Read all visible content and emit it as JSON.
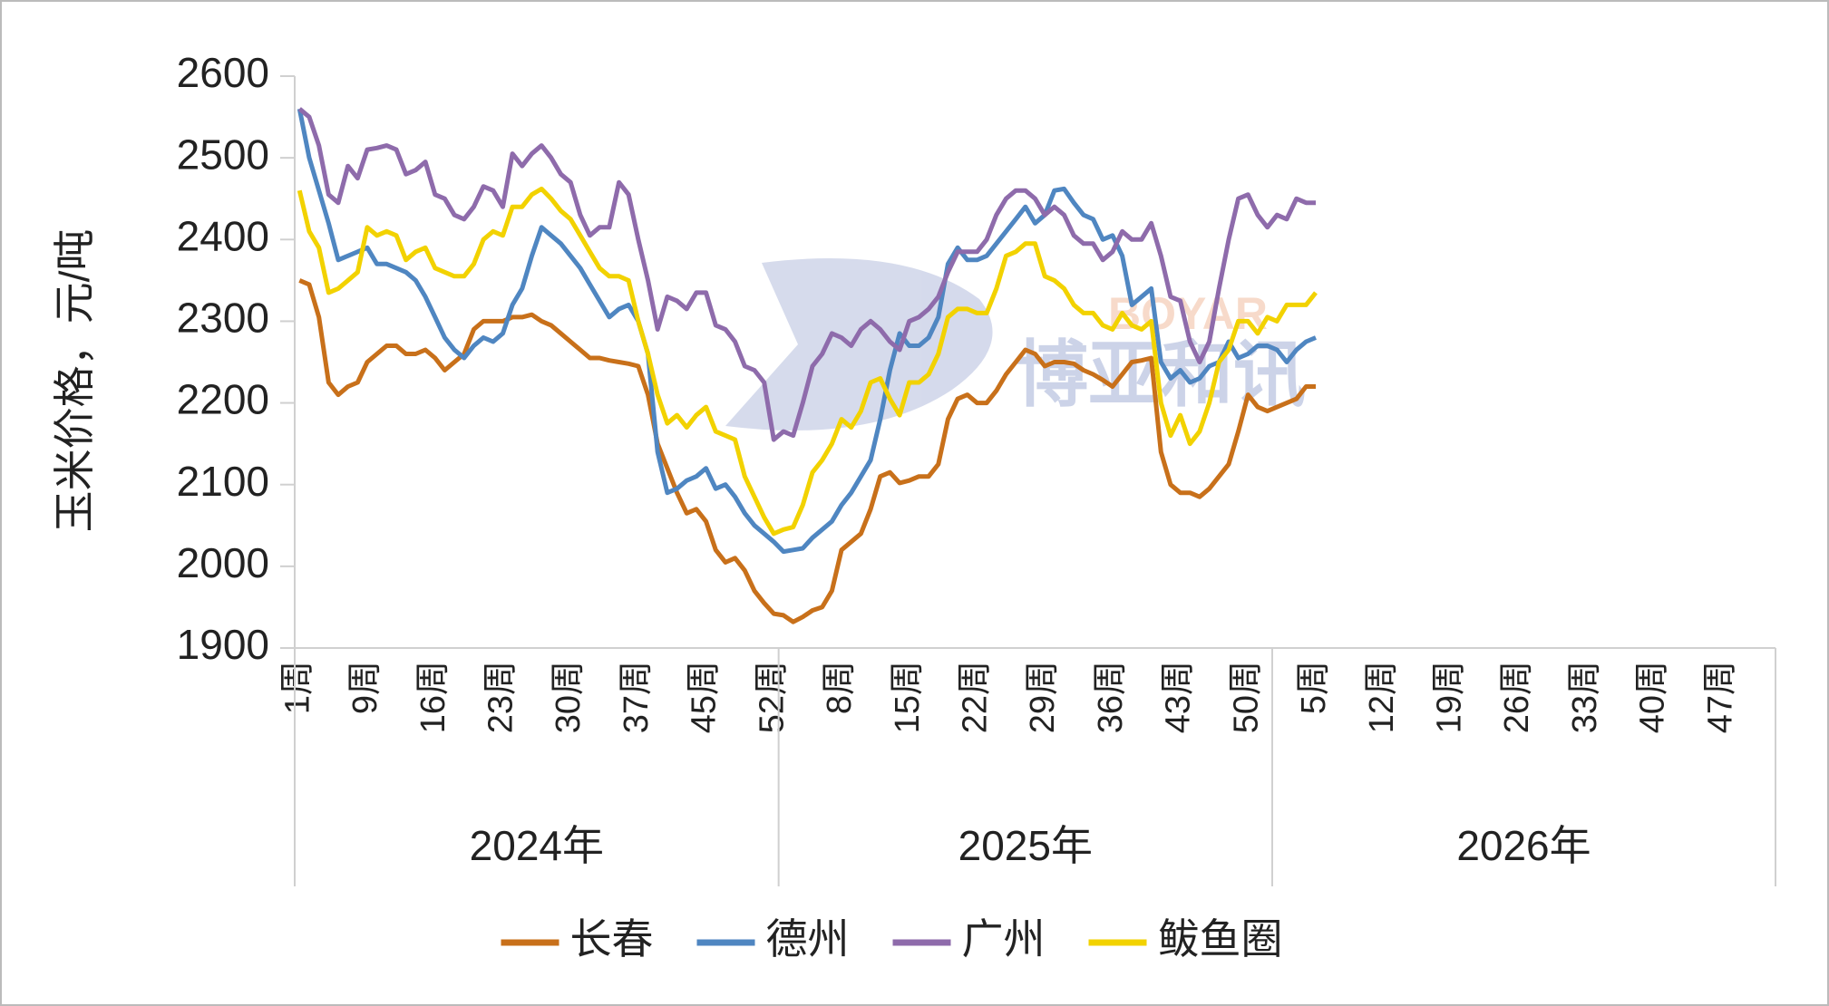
{
  "chart_data": {
    "type": "line",
    "ylabel": "玉米价格，元/吨",
    "watermark": "博亚和讯",
    "watermark_sub": "BOYAR",
    "ylim": [
      1900,
      2600
    ],
    "yticks": [
      1900,
      2000,
      2100,
      2200,
      2300,
      2400,
      2500,
      2600
    ],
    "grid": false,
    "legend": "bottom",
    "x_groups": [
      {
        "label": "2024年",
        "span": 50
      },
      {
        "label": "2025年",
        "span": 51
      },
      {
        "label": "2026年",
        "span": 52
      }
    ],
    "categories": [
      "1周",
      null,
      null,
      null,
      null,
      null,
      null,
      "9周",
      null,
      null,
      null,
      null,
      null,
      null,
      "16周",
      null,
      null,
      null,
      null,
      null,
      null,
      "23周",
      null,
      null,
      null,
      null,
      null,
      null,
      "30周",
      null,
      null,
      null,
      null,
      null,
      null,
      "37周",
      null,
      null,
      null,
      null,
      null,
      null,
      "45周",
      null,
      null,
      null,
      null,
      null,
      null,
      "52周",
      null,
      null,
      null,
      null,
      null,
      null,
      "8周",
      null,
      null,
      null,
      null,
      null,
      null,
      "15周",
      null,
      null,
      null,
      null,
      null,
      null,
      "22周",
      null,
      null,
      null,
      null,
      null,
      null,
      "29周",
      null,
      null,
      null,
      null,
      null,
      null,
      "36周",
      null,
      null,
      null,
      null,
      null,
      null,
      "43周",
      null,
      null,
      null,
      null,
      null,
      null,
      "50周",
      null,
      null,
      null,
      null,
      null,
      null,
      "5周",
      null,
      null,
      null,
      null,
      null,
      null,
      "12周",
      null,
      null,
      null,
      null,
      null,
      null,
      "19周",
      null,
      null,
      null,
      null,
      null,
      null,
      "26周",
      null,
      null,
      null,
      null,
      null,
      null,
      "33周",
      null,
      null,
      null,
      null,
      null,
      null,
      "40周",
      null,
      null,
      null,
      null,
      null,
      null,
      "47周",
      null,
      null,
      null,
      null,
      null
    ],
    "series": [
      {
        "name": "长春",
        "color": "#c8701a",
        "values": [
          2350,
          2345,
          2305,
          2225,
          2210,
          2220,
          2225,
          2250,
          2260,
          2270,
          2270,
          2260,
          2260,
          2265,
          2255,
          2240,
          2250,
          2260,
          2290,
          2300,
          2300,
          2300,
          2305,
          2305,
          2308,
          2300,
          2295,
          2285,
          2275,
          2265,
          2255,
          2255,
          2252,
          2250,
          2248,
          2245,
          2210,
          2150,
          2120,
          2090,
          2065,
          2070,
          2055,
          2020,
          2005,
          2010,
          1995,
          1970,
          1955,
          1942,
          1940,
          1932,
          1938,
          1946,
          1950,
          1970,
          2020,
          2030,
          2040,
          2070,
          2110,
          2115,
          2102,
          2105,
          2110,
          2110,
          2125,
          2180,
          2205,
          2210,
          2200,
          2200,
          2215,
          2235,
          2250,
          2265,
          2260,
          2245,
          2250,
          2250,
          2248,
          2240,
          2235,
          2228,
          2220,
          2235,
          2250,
          2252,
          2255,
          2140,
          2100,
          2090,
          2090,
          2085,
          2095,
          2110,
          2125,
          2165,
          2210,
          2195,
          2190,
          2195,
          2200,
          2205,
          2220,
          2220,
          null,
          null,
          null,
          null,
          null,
          null,
          null,
          null,
          null,
          null,
          null,
          null,
          null,
          null,
          null,
          null,
          null,
          null,
          null,
          null,
          null,
          null,
          null,
          null,
          null,
          null,
          null,
          null,
          null,
          null,
          null,
          null,
          null,
          null,
          null,
          null,
          null,
          null,
          null,
          null,
          null,
          null,
          null,
          null,
          null,
          null,
          null
        ]
      },
      {
        "name": "德州",
        "color": "#4f86c1",
        "values": [
          2560,
          2500,
          2460,
          2420,
          2375,
          2380,
          2385,
          2390,
          2370,
          2370,
          2365,
          2360,
          2350,
          2330,
          2305,
          2280,
          2265,
          2255,
          2270,
          2280,
          2275,
          2285,
          2320,
          2340,
          2380,
          2415,
          2405,
          2395,
          2380,
          2365,
          2345,
          2325,
          2305,
          2315,
          2320,
          2300,
          2260,
          2140,
          2090,
          2095,
          2105,
          2110,
          2120,
          2095,
          2100,
          2085,
          2065,
          2050,
          2040,
          2030,
          2018,
          2020,
          2022,
          2035,
          2045,
          2055,
          2075,
          2090,
          2110,
          2130,
          2180,
          2240,
          2285,
          2270,
          2270,
          2280,
          2305,
          2370,
          2390,
          2375,
          2375,
          2380,
          2395,
          2410,
          2425,
          2440,
          2420,
          2430,
          2460,
          2462,
          2445,
          2430,
          2425,
          2400,
          2405,
          2380,
          2320,
          2330,
          2340,
          2250,
          2230,
          2240,
          2225,
          2230,
          2245,
          2250,
          2275,
          2255,
          2260,
          2270,
          2270,
          2265,
          2250,
          2265,
          2275,
          2280,
          null,
          null,
          null,
          null,
          null,
          null,
          null,
          null,
          null,
          null,
          null,
          null,
          null,
          null,
          null,
          null,
          null,
          null,
          null,
          null,
          null,
          null,
          null,
          null,
          null,
          null,
          null,
          null,
          null,
          null,
          null,
          null,
          null,
          null,
          null,
          null,
          null,
          null,
          null,
          null,
          null,
          null,
          null,
          null,
          null,
          null,
          null
        ]
      },
      {
        "name": "广州",
        "color": "#8e6bab",
        "values": [
          2560,
          2550,
          2515,
          2455,
          2445,
          2490,
          2475,
          2510,
          2512,
          2515,
          2510,
          2480,
          2485,
          2495,
          2455,
          2450,
          2430,
          2425,
          2440,
          2465,
          2460,
          2440,
          2505,
          2490,
          2505,
          2515,
          2500,
          2480,
          2470,
          2430,
          2405,
          2415,
          2415,
          2470,
          2455,
          2400,
          2350,
          2290,
          2330,
          2325,
          2315,
          2335,
          2335,
          2295,
          2290,
          2275,
          2245,
          2240,
          2225,
          2155,
          2165,
          2160,
          2200,
          2245,
          2260,
          2285,
          2280,
          2270,
          2290,
          2300,
          2290,
          2275,
          2265,
          2300,
          2305,
          2315,
          2330,
          2360,
          2385,
          2385,
          2385,
          2400,
          2430,
          2450,
          2460,
          2460,
          2450,
          2430,
          2440,
          2430,
          2405,
          2395,
          2395,
          2375,
          2385,
          2410,
          2400,
          2400,
          2420,
          2380,
          2330,
          2325,
          2275,
          2250,
          2275,
          2340,
          2400,
          2450,
          2455,
          2430,
          2415,
          2430,
          2425,
          2450,
          2445,
          2445,
          null,
          null,
          null,
          null,
          null,
          null,
          null,
          null,
          null,
          null,
          null,
          null,
          null,
          null,
          null,
          null,
          null,
          null,
          null,
          null,
          null,
          null,
          null,
          null,
          null,
          null,
          null,
          null,
          null,
          null,
          null,
          null,
          null,
          null,
          null,
          null,
          null,
          null,
          null,
          null,
          null,
          null,
          null,
          null,
          null,
          null,
          null
        ]
      },
      {
        "name": "鲅鱼圈",
        "color": "#f2d200",
        "values": [
          2460,
          2410,
          2390,
          2335,
          2340,
          2350,
          2360,
          2415,
          2405,
          2410,
          2405,
          2375,
          2385,
          2390,
          2365,
          2360,
          2355,
          2355,
          2370,
          2400,
          2410,
          2405,
          2440,
          2440,
          2455,
          2462,
          2450,
          2435,
          2425,
          2405,
          2385,
          2365,
          2355,
          2355,
          2350,
          2300,
          2260,
          2210,
          2175,
          2185,
          2170,
          2185,
          2195,
          2165,
          2160,
          2155,
          2110,
          2085,
          2060,
          2040,
          2045,
          2048,
          2075,
          2115,
          2130,
          2150,
          2180,
          2170,
          2190,
          2225,
          2230,
          2205,
          2185,
          2225,
          2225,
          2235,
          2260,
          2305,
          2315,
          2315,
          2310,
          2310,
          2340,
          2380,
          2385,
          2395,
          2395,
          2355,
          2350,
          2340,
          2320,
          2310,
          2310,
          2295,
          2290,
          2310,
          2295,
          2290,
          2300,
          2200,
          2160,
          2185,
          2150,
          2165,
          2200,
          2250,
          2265,
          2300,
          2300,
          2285,
          2305,
          2300,
          2320,
          2320,
          2320,
          2335,
          null,
          null,
          null,
          null,
          null,
          null,
          null,
          null,
          null,
          null,
          null,
          null,
          null,
          null,
          null,
          null,
          null,
          null,
          null,
          null,
          null,
          null,
          null,
          null,
          null,
          null,
          null,
          null,
          null,
          null,
          null,
          null,
          null,
          null,
          null,
          null,
          null,
          null,
          null,
          null,
          null,
          null,
          null,
          null,
          null,
          null,
          null
        ]
      }
    ]
  }
}
